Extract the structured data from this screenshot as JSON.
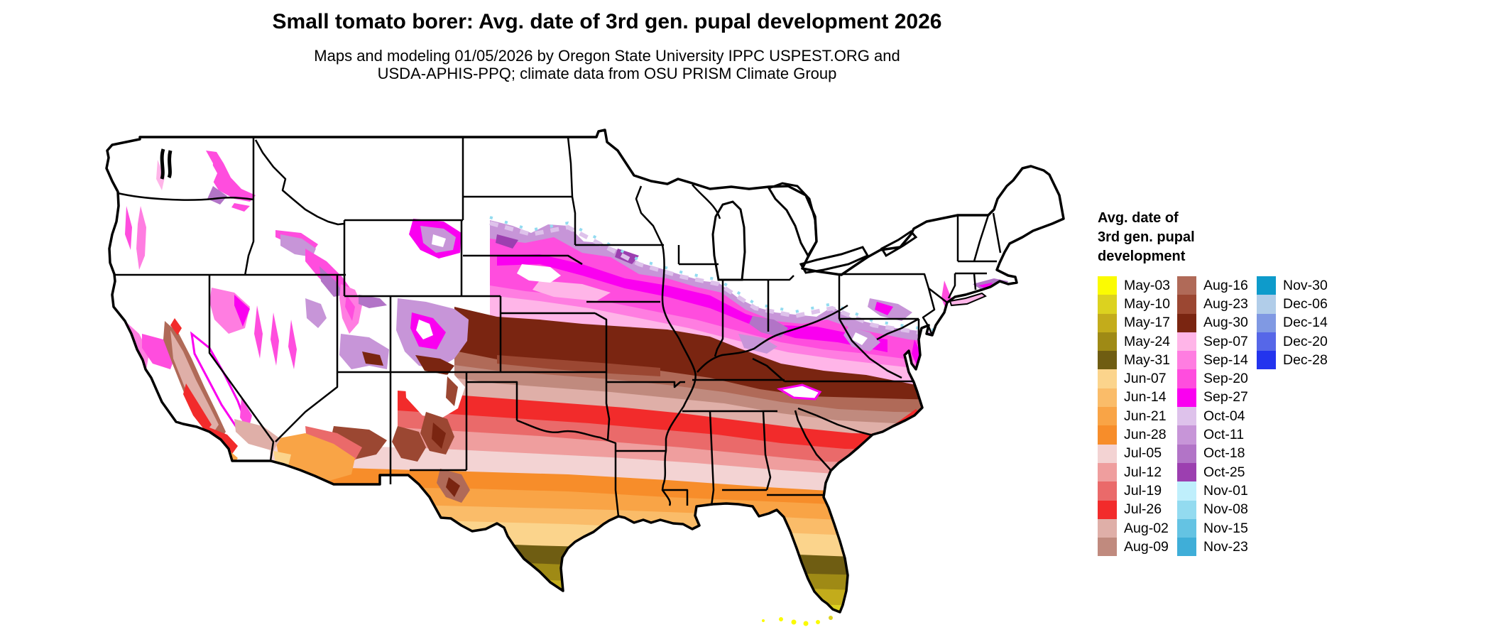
{
  "header": {
    "title": "Small tomato borer: Avg. date of 3rd gen. pupal development 2026",
    "subtitle_line1": "Maps and modeling 01/05/2026 by Oregon State University IPPC USPEST.ORG and",
    "subtitle_line2": "USDA-APHIS-PPQ; climate data from OSU PRISM Climate Group"
  },
  "legend": {
    "title_lines": [
      "Avg. date of",
      "3rd gen. pupal",
      "development"
    ],
    "columns": [
      [
        {
          "label": "May-03",
          "color": "#FBFB02"
        },
        {
          "label": "May-10",
          "color": "#DCD21F"
        },
        {
          "label": "May-17",
          "color": "#C3AC1B"
        },
        {
          "label": "May-24",
          "color": "#9F8A15"
        },
        {
          "label": "May-31",
          "color": "#6F5D12"
        },
        {
          "label": "Jun-07",
          "color": "#FBD48C"
        },
        {
          "label": "Jun-14",
          "color": "#FABC69"
        },
        {
          "label": "Jun-21",
          "color": "#F9A446"
        },
        {
          "label": "Jun-28",
          "color": "#F78D2A"
        },
        {
          "label": "Jul-05",
          "color": "#F3D3D3"
        },
        {
          "label": "Jul-12",
          "color": "#EF9E9E"
        },
        {
          "label": "Jul-19",
          "color": "#EA6A6A"
        },
        {
          "label": "Jul-26",
          "color": "#F22B2B"
        },
        {
          "label": "Aug-02",
          "color": "#DFAFA8"
        },
        {
          "label": "Aug-09",
          "color": "#C08A7E"
        }
      ],
      [
        {
          "label": "Aug-16",
          "color": "#B06A58"
        },
        {
          "label": "Aug-23",
          "color": "#9B4732"
        },
        {
          "label": "Aug-30",
          "color": "#7A2511"
        },
        {
          "label": "Sep-07",
          "color": "#FFB5E8"
        },
        {
          "label": "Sep-14",
          "color": "#FF7DE1"
        },
        {
          "label": "Sep-20",
          "color": "#FF4DDE"
        },
        {
          "label": "Sep-27",
          "color": "#FA00F0"
        },
        {
          "label": "Oct-04",
          "color": "#DEC2EB"
        },
        {
          "label": "Oct-11",
          "color": "#C795D8"
        },
        {
          "label": "Oct-18",
          "color": "#B274C7"
        },
        {
          "label": "Oct-25",
          "color": "#9C3FB0"
        },
        {
          "label": "Nov-01",
          "color": "#BFEFFC"
        },
        {
          "label": "Nov-08",
          "color": "#93DBF0"
        },
        {
          "label": "Nov-15",
          "color": "#64C3E3"
        },
        {
          "label": "Nov-23",
          "color": "#3FAED8"
        }
      ],
      [
        {
          "label": "Nov-30",
          "color": "#0E9BCB"
        },
        {
          "label": "Dec-06",
          "color": "#B1CDE9"
        },
        {
          "label": "Dec-14",
          "color": "#8099E3"
        },
        {
          "label": "Dec-20",
          "color": "#5667E8"
        },
        {
          "label": "Dec-28",
          "color": "#2334EE"
        }
      ]
    ]
  },
  "map": {
    "region": "Contiguous United States",
    "no_data_color": "#FFFFFF",
    "border_color": "#000000"
  }
}
